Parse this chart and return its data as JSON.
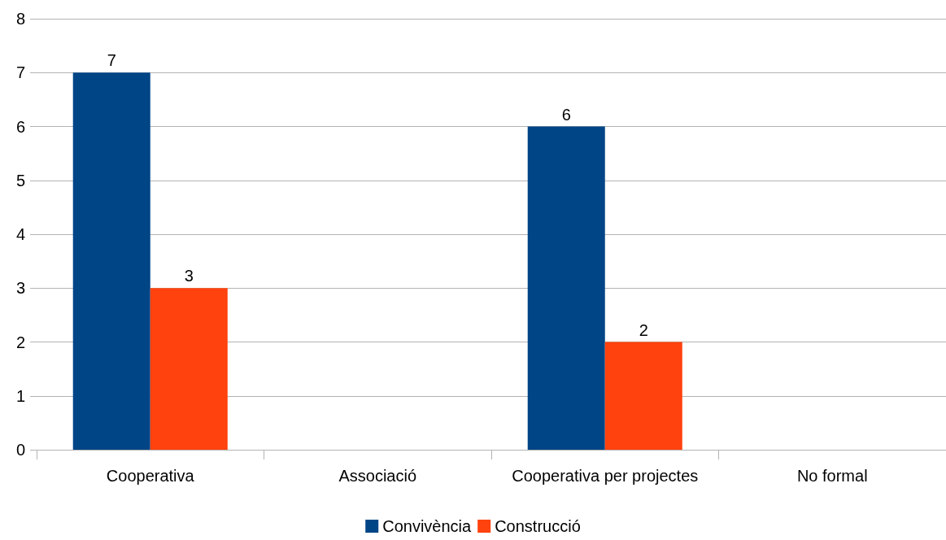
{
  "chart_data": {
    "type": "bar",
    "categories": [
      "Cooperativa",
      "Associació",
      "Cooperativa per projectes",
      "No formal"
    ],
    "series": [
      {
        "name": "Convivència",
        "color": "#004586",
        "values": [
          7,
          0,
          6,
          0
        ],
        "value_labels": [
          "7",
          null,
          "6",
          null
        ]
      },
      {
        "name": "Construcció",
        "color": "#ff420e",
        "values": [
          3,
          0,
          2,
          0
        ],
        "value_labels": [
          "3",
          null,
          "2",
          null
        ]
      }
    ],
    "ylim": [
      0,
      8
    ],
    "yticks": [
      0,
      1,
      2,
      3,
      4,
      5,
      6,
      7,
      8
    ],
    "grid": "y",
    "legend": "bottom"
  }
}
